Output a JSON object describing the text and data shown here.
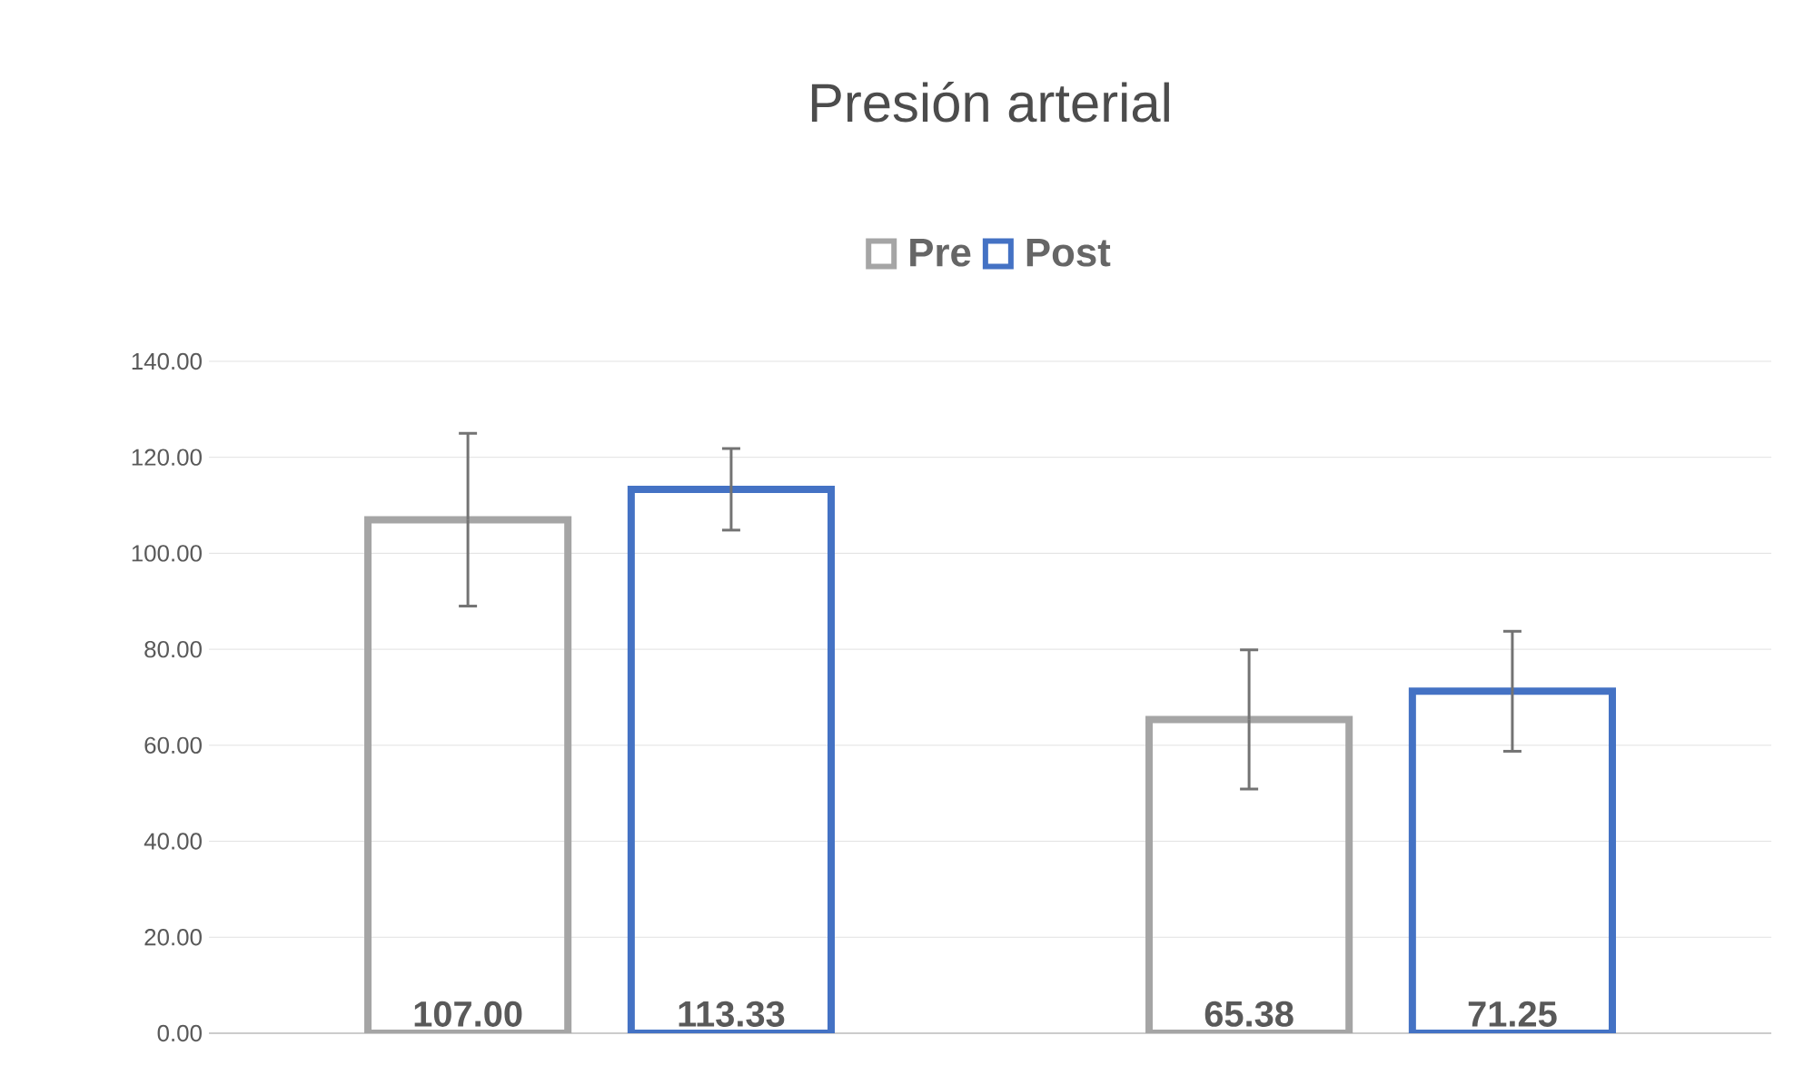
{
  "chart_data": {
    "type": "bar",
    "title": "Presión arterial",
    "categories": [
      null,
      null
    ],
    "series": [
      {
        "name": "Pre",
        "color": "#a5a5a5",
        "values": [
          107.0,
          65.38
        ],
        "errors": [
          18,
          14.5
        ],
        "value_labels": [
          "107.00",
          "65.38"
        ]
      },
      {
        "name": "Post",
        "color": "#4472c4",
        "values": [
          113.33,
          71.25
        ],
        "errors": [
          8.5,
          12.5
        ],
        "value_labels": [
          "113.33",
          "71.25"
        ]
      }
    ],
    "ylim": [
      0,
      140
    ],
    "yticks": [
      {
        "value": 0,
        "label": "0.00"
      },
      {
        "value": 20,
        "label": "20.00"
      },
      {
        "value": 40,
        "label": "40.00"
      },
      {
        "value": 60,
        "label": "60.00"
      },
      {
        "value": 80,
        "label": "80.00"
      },
      {
        "value": 100,
        "label": "100.00"
      },
      {
        "value": 120,
        "label": "120.00"
      },
      {
        "value": 140,
        "label": "140.00"
      }
    ],
    "grid": "y",
    "legend": "top"
  }
}
